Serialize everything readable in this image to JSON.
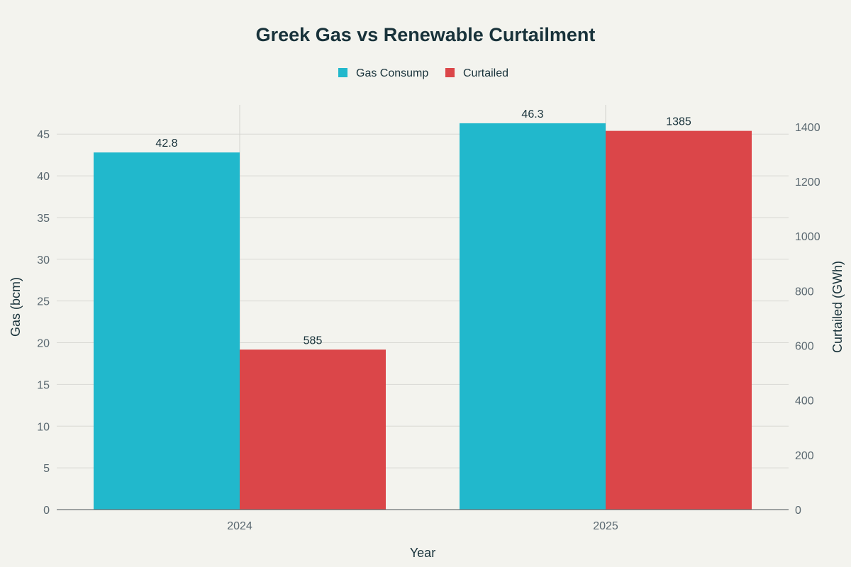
{
  "chart_data": {
    "type": "bar",
    "title": "Greek Gas vs Renewable Curtailment",
    "xlabel": "Year",
    "ylabel": "Gas (bcm)",
    "y2label": "Curtailed (GWh)",
    "categories": [
      "2024",
      "2025"
    ],
    "ylim": [
      0,
      48.5
    ],
    "y2lim": [
      0,
      1480
    ],
    "yticks": [
      0,
      5,
      10,
      15,
      20,
      25,
      30,
      35,
      40,
      45
    ],
    "y2ticks": [
      0,
      200,
      400,
      600,
      800,
      1000,
      1200,
      1400
    ],
    "legend_position": "top-center",
    "grid": true,
    "series": [
      {
        "name": "Gas Consump",
        "axis": "left",
        "color": "#21b8cc",
        "values": [
          42.8,
          46.3
        ],
        "labels": [
          "42.8",
          "46.3"
        ]
      },
      {
        "name": "Curtailed",
        "axis": "right",
        "color": "#db4649",
        "values": [
          585,
          1385
        ],
        "labels": [
          "585",
          "1385"
        ]
      }
    ]
  }
}
